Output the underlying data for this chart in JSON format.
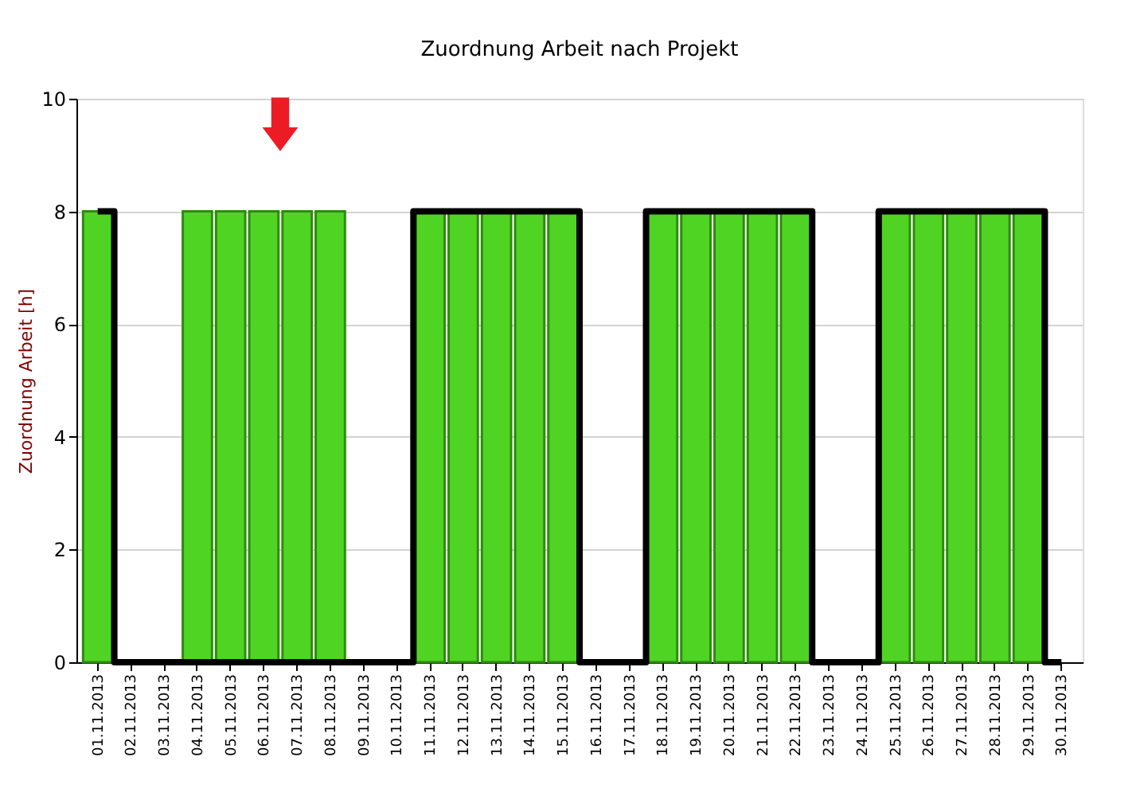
{
  "chart_data": {
    "type": "bar",
    "title": "Zuordnung Arbeit nach Projekt",
    "ylabel": "Zuordnung Arbeit [h]",
    "categories": [
      "01.11.2013",
      "02.11.2013",
      "03.11.2013",
      "04.11.2013",
      "05.11.2013",
      "06.11.2013",
      "07.11.2013",
      "08.11.2013",
      "09.11.2013",
      "10.11.2013",
      "11.11.2013",
      "12.11.2013",
      "13.11.2013",
      "14.11.2013",
      "15.11.2013",
      "16.11.2013",
      "17.11.2013",
      "18.11.2013",
      "19.11.2013",
      "20.11.2013",
      "21.11.2013",
      "22.11.2013",
      "23.11.2013",
      "24.11.2013",
      "25.11.2013",
      "26.11.2013",
      "27.11.2013",
      "28.11.2013",
      "29.11.2013",
      "30.11.2013"
    ],
    "series": [
      {
        "color": "#4fd424",
        "values": [
          8,
          null,
          null,
          8,
          8,
          8,
          8,
          8,
          null,
          null,
          8,
          8,
          8,
          8,
          8,
          null,
          null,
          8,
          8,
          8,
          8,
          8,
          null,
          null,
          8,
          8,
          8,
          8,
          8,
          null
        ]
      },
      {
        "type": "step",
        "color": "#000000",
        "values": [
          8,
          0,
          0,
          0,
          0,
          0,
          0,
          0,
          0,
          0,
          8,
          8,
          8,
          8,
          8,
          0,
          0,
          8,
          8,
          8,
          8,
          8,
          0,
          0,
          8,
          8,
          8,
          8,
          8,
          0
        ]
      }
    ],
    "ylim": [
      0,
      10
    ],
    "yticks": [
      0,
      2,
      4,
      6,
      8,
      10
    ],
    "grid": "y"
  }
}
